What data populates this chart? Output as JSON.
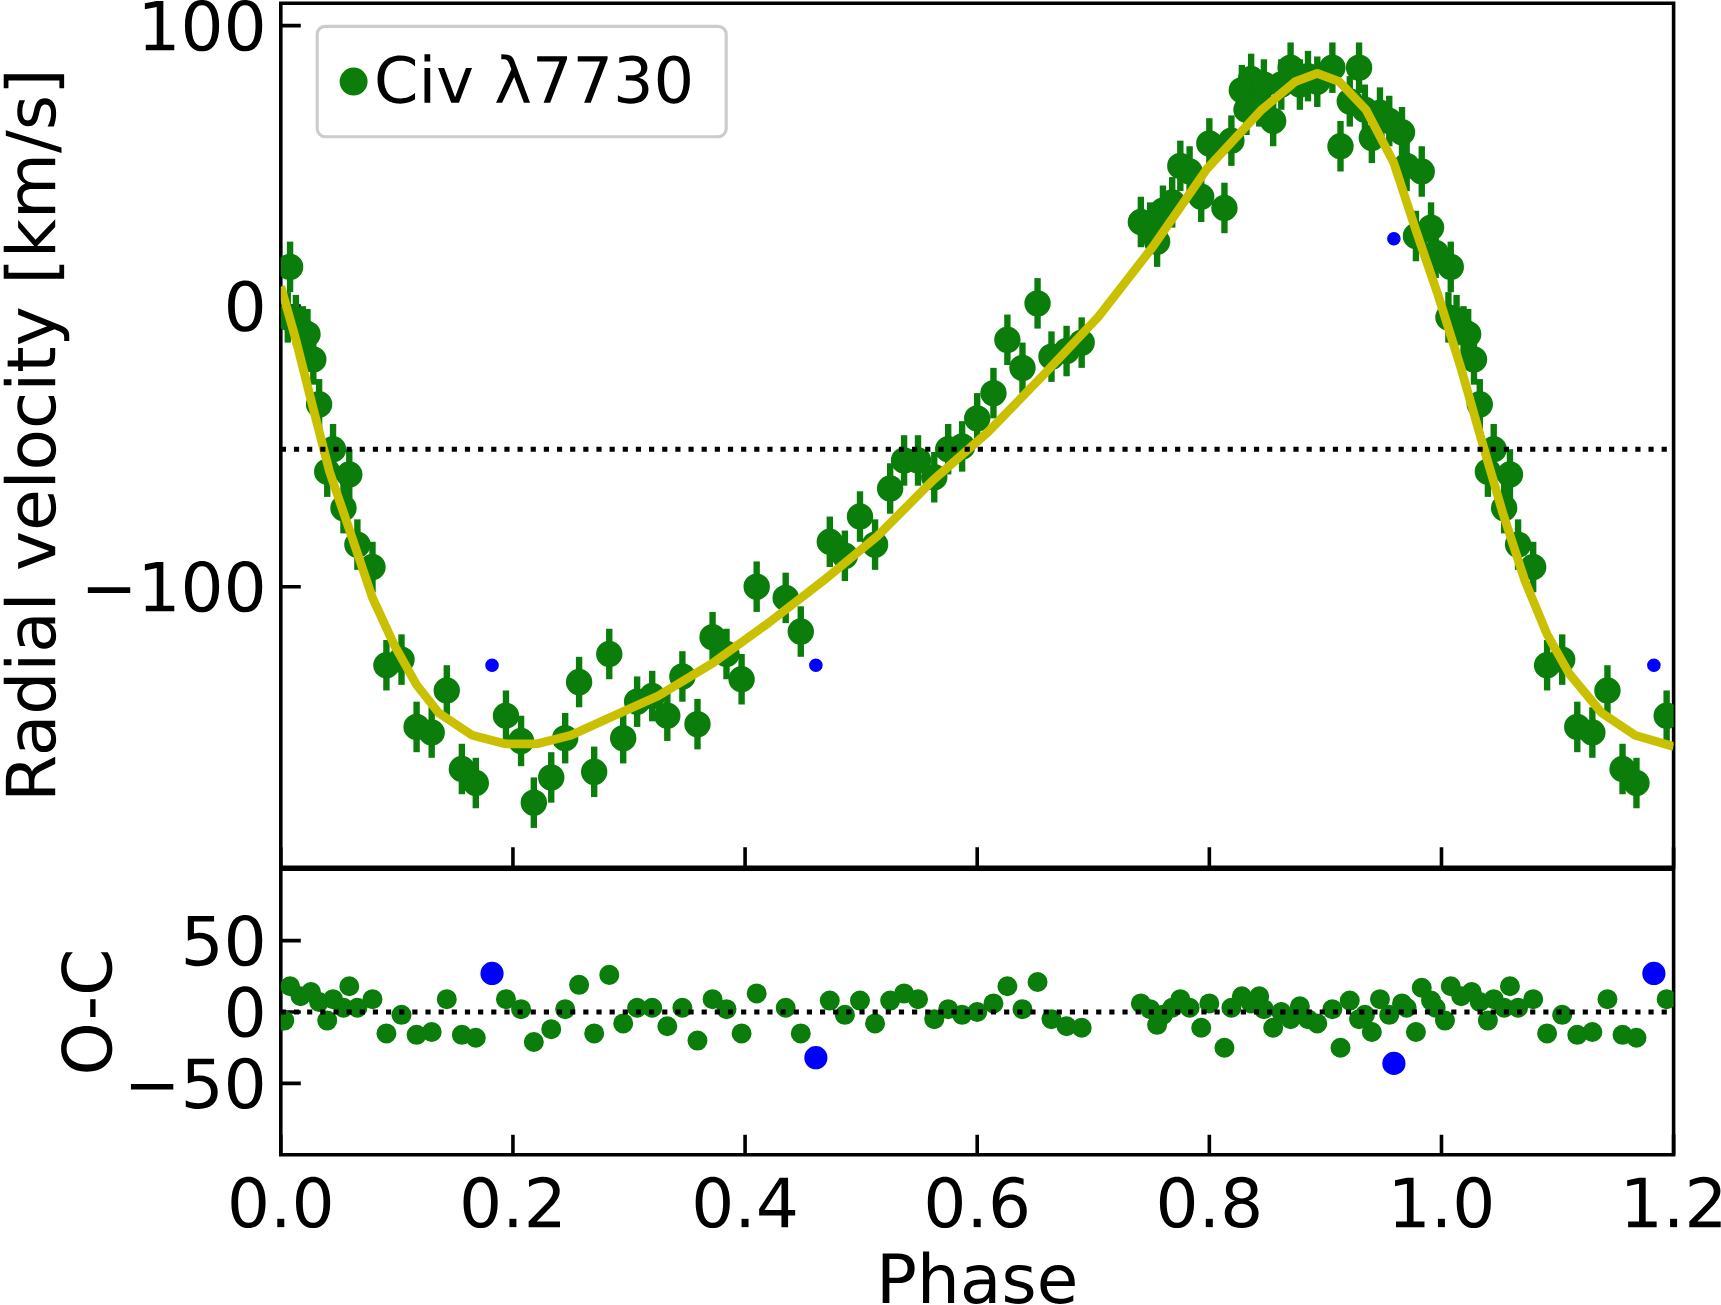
{
  "chart_data": [
    {
      "type": "scatter",
      "ylabel": "Radial velocity [km/s]",
      "xlim": [
        0,
        1.2
      ],
      "ylim": [
        -200,
        108
      ],
      "xticks": [
        0,
        0.2,
        0.4,
        0.6,
        0.8,
        1.0,
        1.2
      ],
      "yticks": [
        {
          "value": -100,
          "label": "−100"
        },
        0,
        100
      ],
      "tick_labels": "y",
      "legend": "top left",
      "grid": false,
      "ref_lines": [
        {
          "axis": "y",
          "value": -51,
          "line_style": "dotted",
          "color": "#000000"
        }
      ],
      "series": [
        {
          "name": "Civ λ7730",
          "color": "#0a7d0a",
          "marker": "circle",
          "x": [
            0.006,
            0.008,
            0.013,
            0.019,
            0.023,
            0.028,
            0.033,
            0.04,
            0.045,
            0.054,
            0.059,
            0.066,
            0.079,
            0.091,
            0.104,
            0.117,
            0.13,
            0.143,
            0.156,
            0.168,
            0.194,
            0.207,
            0.218,
            0.233,
            0.245,
            0.257,
            0.27,
            0.283,
            0.295,
            0.307,
            0.32,
            0.333,
            0.346,
            0.359,
            0.372,
            0.384,
            0.397,
            0.41,
            0.435,
            0.448,
            0.473,
            0.486,
            0.499,
            0.512,
            0.525,
            0.537,
            0.549,
            0.563,
            0.575,
            0.587,
            0.6,
            0.614,
            0.626,
            0.639,
            0.652,
            0.664,
            0.677,
            0.69,
            0.741,
            0.749,
            0.755,
            0.76,
            0.768,
            0.775,
            0.783,
            0.793,
            0.8,
            0.813,
            0.819,
            0.828,
            0.832,
            0.836,
            0.843,
            0.847,
            0.855,
            0.862,
            0.87,
            0.878,
            0.885,
            0.893,
            0.906,
            0.913,
            0.921,
            0.929,
            0.934,
            0.94,
            0.947,
            0.955,
            0.966,
            0.97,
            0.978,
            0.983,
            0.991,
            0.995,
            1.006,
            1.008,
            1.013,
            1.019,
            1.023,
            1.028,
            1.033,
            1.04,
            1.045,
            1.054,
            1.059,
            1.066,
            1.079,
            1.091,
            1.104,
            1.117,
            1.13,
            1.143,
            1.156,
            1.168,
            1.194
          ],
          "values": [
            -4,
            14,
            -5,
            -9,
            -10,
            -19,
            -35,
            -59,
            -51,
            -72,
            -60,
            -85,
            -93,
            -128,
            -126,
            -150,
            -152,
            -137,
            -165,
            -170,
            -146,
            -155,
            -177,
            -168,
            -154,
            -134,
            -166,
            -124,
            -154,
            -141,
            -139,
            -146,
            -132,
            -149,
            -118,
            -124,
            -133,
            -100,
            -104,
            -116,
            -84,
            -89,
            -75,
            -85,
            -65,
            -55,
            -55,
            -61,
            -51,
            -50,
            -40,
            -31,
            -12,
            -22,
            1,
            -18,
            -16,
            -13,
            30,
            28,
            23,
            34,
            37,
            50,
            48,
            39,
            58,
            35,
            59,
            77,
            70,
            81,
            73,
            79,
            66,
            79,
            85,
            79,
            82,
            80,
            85,
            57,
            73,
            85,
            70,
            60,
            69,
            66,
            62,
            50,
            25,
            48,
            28,
            19,
            -4,
            14,
            -5,
            -9,
            -10,
            -19,
            -35,
            -59,
            -51,
            -72,
            -60,
            -85,
            -93,
            -128,
            -126,
            -150,
            -152,
            -137,
            -165,
            -170,
            -146
          ],
          "errors": [
            9,
            9,
            9,
            9,
            9,
            9,
            9,
            9,
            9,
            9,
            9,
            9,
            9,
            9,
            9,
            9,
            9,
            9,
            9,
            9,
            9,
            9,
            9,
            9,
            9,
            9,
            9,
            9,
            9,
            9,
            9,
            9,
            9,
            9,
            9,
            9,
            9,
            9,
            9,
            9,
            9,
            9,
            9,
            9,
            9,
            9,
            9,
            9,
            9,
            9,
            9,
            9,
            9,
            9,
            9,
            9,
            9,
            9,
            9,
            9,
            9,
            9,
            9,
            9,
            9,
            9,
            9,
            9,
            9,
            9,
            9,
            9,
            9,
            9,
            9,
            9,
            9,
            9,
            9,
            9,
            9,
            9,
            9,
            9,
            9,
            9,
            9,
            9,
            9,
            9,
            9,
            9,
            9,
            9,
            9,
            9,
            9,
            9,
            9,
            9,
            9,
            9,
            9,
            9,
            9,
            9,
            9,
            9,
            9,
            9,
            9,
            9,
            9,
            9,
            9
          ]
        },
        {
          "color": "#0000ff",
          "marker": "circle",
          "x": [
            0.182,
            0.461,
            0.959,
            1.183
          ],
          "values": [
            -128,
            -128,
            24,
            -128
          ]
        },
        {
          "type": "line",
          "color": "#c8c000",
          "marker": "none",
          "x": [
            0,
            0.013,
            0.027,
            0.042,
            0.061,
            0.079,
            0.098,
            0.117,
            0.136,
            0.165,
            0.193,
            0.221,
            0.25,
            0.287,
            0.325,
            0.373,
            0.42,
            0.467,
            0.514,
            0.562,
            0.609,
            0.656,
            0.704,
            0.751,
            0.798,
            0.845,
            0.874,
            0.893,
            0.912,
            0.935,
            0.959,
            0.978,
            0.997,
            1.016,
            1.034,
            1.053,
            1.072,
            1.091,
            1.11,
            1.138,
            1.167,
            1.2
          ],
          "values": [
            7,
            -12,
            -35,
            -59,
            -82,
            -104,
            -121,
            -135,
            -145,
            -153,
            -156,
            -156,
            -153,
            -146,
            -139,
            -127,
            -113,
            -98,
            -82,
            -62,
            -45,
            -25,
            -4,
            21,
            49,
            70,
            80,
            83,
            80,
            70,
            51,
            27,
            4,
            -21,
            -47,
            -74,
            -98,
            -117,
            -131,
            -145,
            -153,
            -157
          ]
        }
      ]
    },
    {
      "type": "scatter",
      "xlabel": "Phase",
      "ylabel": "O-C",
      "xlim": [
        0,
        1.2
      ],
      "ylim": [
        -100,
        100
      ],
      "xticks": [
        {
          "value": 0,
          "label": "0.0"
        },
        0.2,
        0.4,
        0.6,
        0.8,
        {
          "value": 1.0,
          "label": "1.0"
        },
        1.2
      ],
      "yticks": [
        {
          "value": -50,
          "label": "−50"
        },
        0,
        50
      ],
      "grid": false,
      "ref_lines": [
        {
          "axis": "y",
          "value": 0,
          "line_style": "dotted",
          "color": "#000000"
        }
      ],
      "series": [
        {
          "color": "#0a7d0a",
          "marker": "circle",
          "x": [
            0.003,
            0.008,
            0.017,
            0.026,
            0.033,
            0.04,
            0.045,
            0.054,
            0.059,
            0.066,
            0.079,
            0.091,
            0.104,
            0.117,
            0.13,
            0.143,
            0.156,
            0.168,
            0.194,
            0.207,
            0.218,
            0.233,
            0.245,
            0.257,
            0.27,
            0.283,
            0.295,
            0.307,
            0.32,
            0.333,
            0.346,
            0.359,
            0.372,
            0.384,
            0.397,
            0.41,
            0.435,
            0.448,
            0.473,
            0.486,
            0.499,
            0.512,
            0.525,
            0.537,
            0.549,
            0.563,
            0.575,
            0.587,
            0.6,
            0.614,
            0.626,
            0.639,
            0.652,
            0.664,
            0.677,
            0.69,
            0.741,
            0.749,
            0.755,
            0.76,
            0.768,
            0.775,
            0.783,
            0.793,
            0.8,
            0.813,
            0.819,
            0.828,
            0.832,
            0.836,
            0.843,
            0.847,
            0.855,
            0.862,
            0.87,
            0.878,
            0.885,
            0.893,
            0.906,
            0.913,
            0.921,
            0.929,
            0.934,
            0.94,
            0.947,
            0.955,
            0.966,
            0.97,
            0.978,
            0.983,
            0.991,
            0.995,
            1.003,
            1.008,
            1.017,
            1.026,
            1.033,
            1.04,
            1.045,
            1.054,
            1.059,
            1.066,
            1.079,
            1.091,
            1.104,
            1.117,
            1.13,
            1.143,
            1.156,
            1.168,
            1.194
          ],
          "values": [
            -6,
            18,
            11,
            14,
            7,
            -6,
            9,
            3,
            18,
            3,
            9,
            -15,
            -2,
            -16,
            -14,
            9,
            -16,
            -18,
            9,
            2,
            -21,
            -12,
            2,
            19,
            -15,
            26,
            -8,
            3,
            3,
            -10,
            3,
            -20,
            9,
            2,
            -15,
            13,
            3,
            -15,
            8,
            -2,
            8,
            -8,
            8,
            13,
            9,
            -5,
            2,
            -2,
            0,
            6,
            18,
            2,
            21,
            -5,
            -10,
            -11,
            6,
            2,
            -9,
            -2,
            3,
            9,
            3,
            -11,
            6,
            -25,
            3,
            11,
            null,
            6,
            11,
            2,
            -11,
            0,
            -5,
            4,
            -5,
            -8,
            2,
            -25,
            8,
            -5,
            -2,
            -14,
            9,
            -2,
            6,
            3,
            -14,
            17,
            8,
            3,
            -6,
            18,
            11,
            14,
            7,
            -6,
            9,
            3,
            18,
            3,
            9,
            -15,
            -2,
            -16,
            -14,
            9,
            -16,
            -18,
            9
          ],
          "errors": [
            5,
            5,
            5,
            5,
            5,
            5,
            5,
            5,
            5,
            5,
            5,
            5,
            5,
            5,
            5,
            5,
            5,
            5,
            5,
            5,
            5,
            5,
            5,
            5,
            5,
            5,
            5,
            5,
            5,
            5,
            5,
            5,
            5,
            5,
            5,
            5,
            5,
            5,
            5,
            5,
            5,
            5,
            5,
            5,
            5,
            5,
            5,
            5,
            5,
            5,
            5,
            5,
            5,
            5,
            5,
            5,
            5,
            5,
            5,
            5,
            5,
            5,
            5,
            5,
            5,
            5,
            5,
            5,
            null,
            5,
            5,
            5,
            5,
            5,
            5,
            5,
            5,
            5,
            5,
            5,
            5,
            5,
            5,
            5,
            5,
            5,
            5,
            5,
            5,
            5,
            5,
            5,
            5,
            5,
            5,
            5,
            5,
            5,
            5,
            5,
            5,
            5,
            5,
            5,
            5,
            5,
            5,
            5,
            5,
            5,
            5
          ]
        },
        {
          "color": "#0000ff",
          "marker": "circle",
          "x": [
            0.182,
            0.461,
            0.959,
            1.183
          ],
          "values": [
            27,
            -32,
            -36,
            27
          ],
          "errors": [
            5,
            5,
            5,
            5
          ]
        }
      ]
    }
  ]
}
